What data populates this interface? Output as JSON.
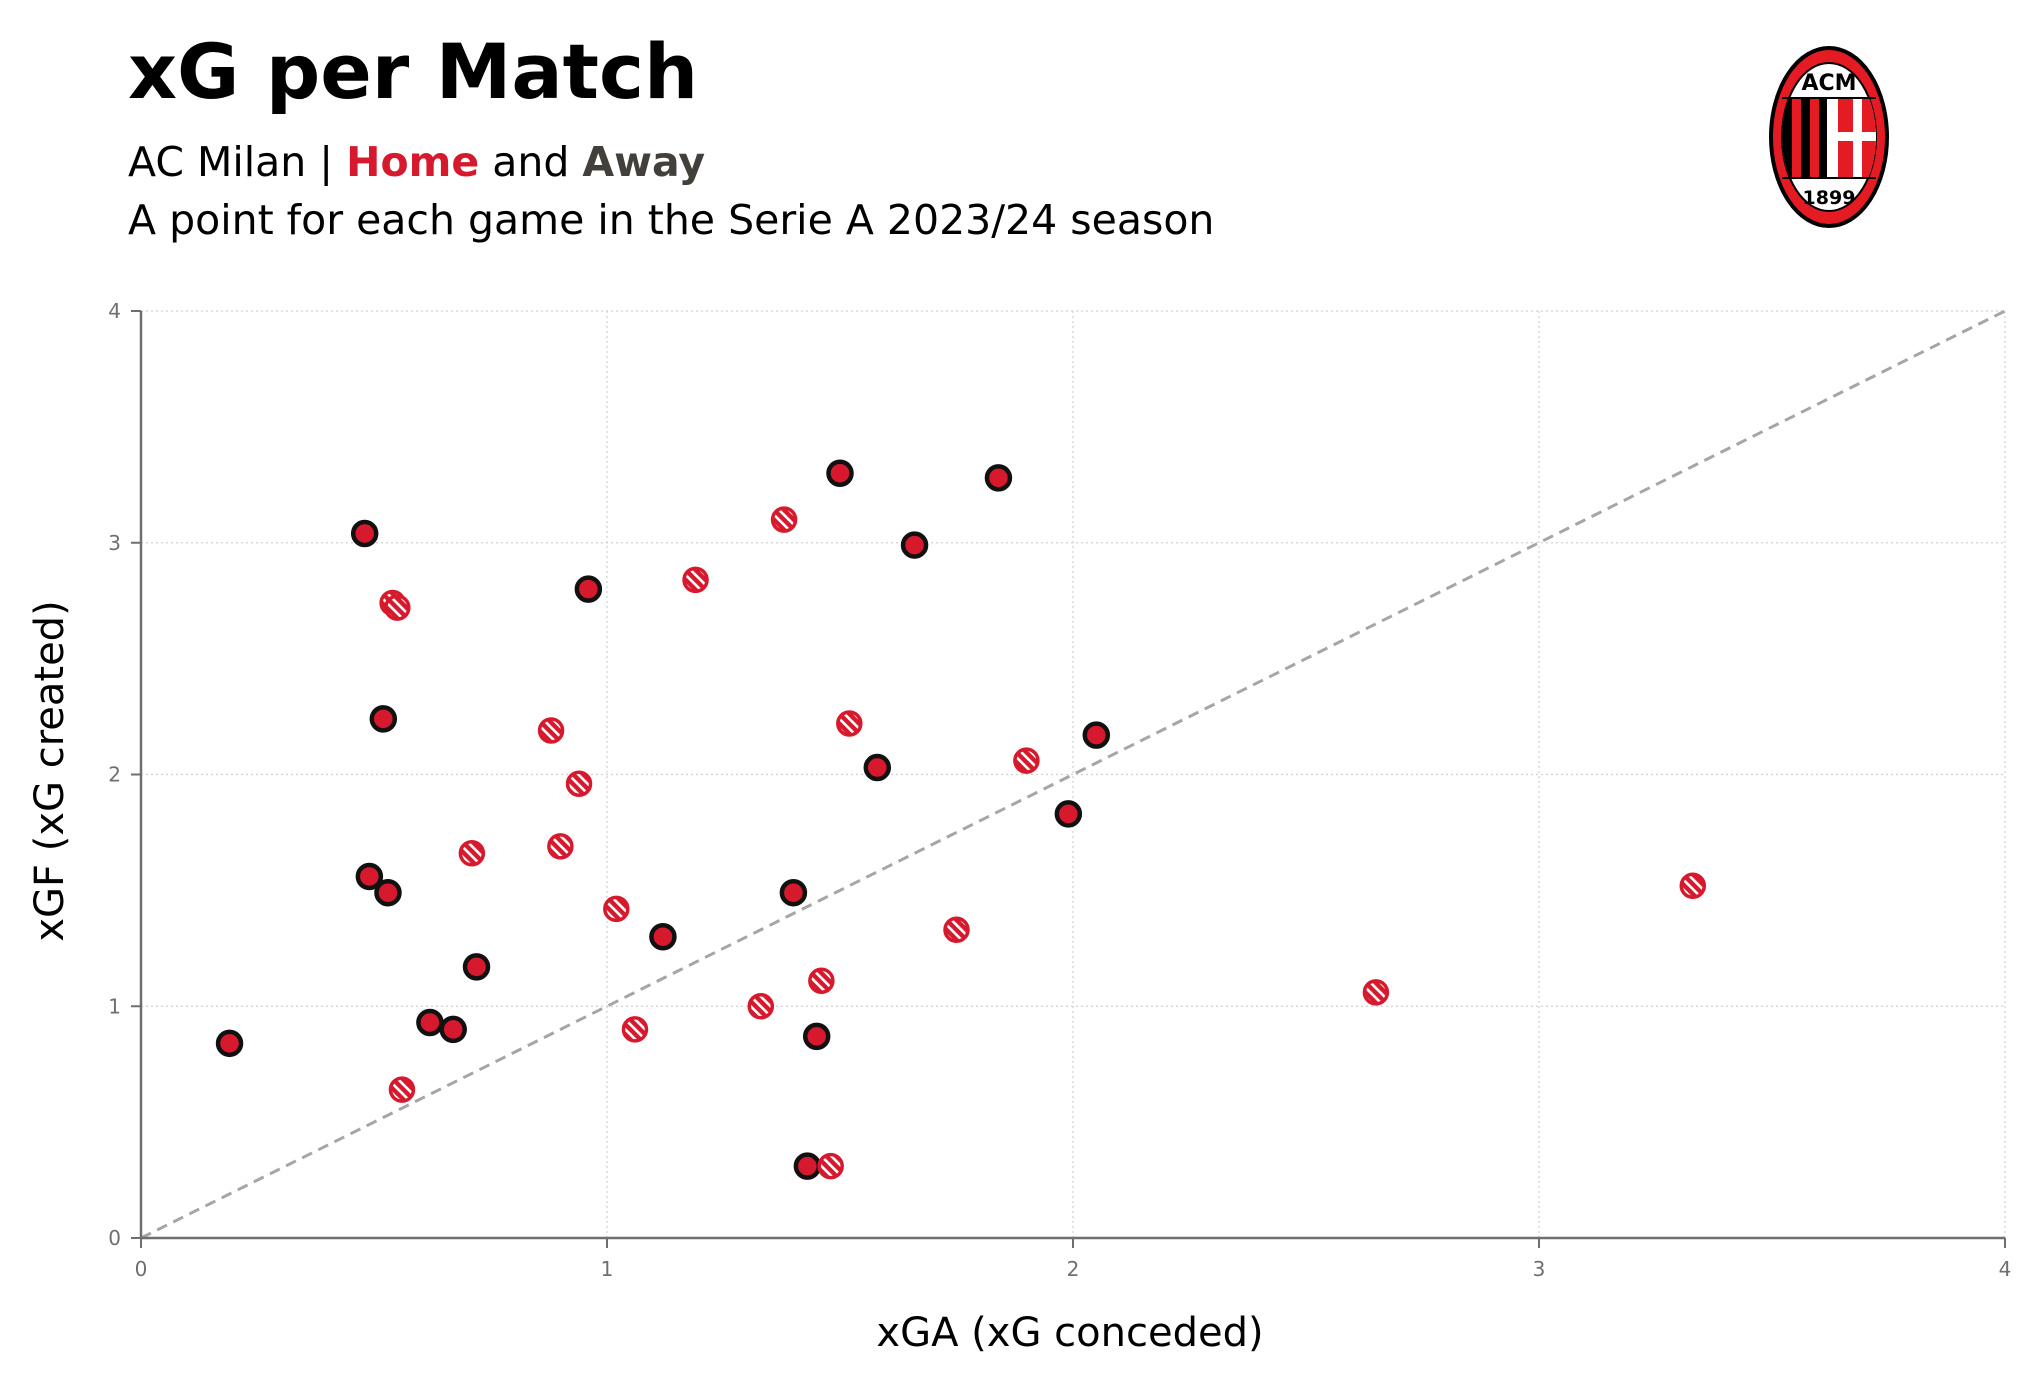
{
  "header": {
    "title": "xG per Match",
    "subtitle_team": "AC Milan |",
    "subtitle_home": "Home",
    "subtitle_and": "and",
    "subtitle_away": "Away",
    "description": "A point for each game in the Serie A 2023/24 season"
  },
  "logo": {
    "top_text": "ACM",
    "year": "1899",
    "colors": {
      "red": "#e41b23",
      "black": "#000000",
      "white": "#ffffff"
    }
  },
  "colors": {
    "home": "#d7192d",
    "away": "#433f3a",
    "marker_fill": "#d7192d",
    "diagonal": "#a6a6a6",
    "axis": "#6f6f6f",
    "grid": "#d0d0d0"
  },
  "chart_data": {
    "type": "scatter",
    "xlabel": "xGA (xG conceded)",
    "ylabel": "xGF (xG created)",
    "xlim": [
      0,
      4
    ],
    "ylim": [
      0,
      4
    ],
    "x_ticks": [
      "0",
      "1",
      "2",
      "3",
      "4"
    ],
    "y_ticks": [
      "0",
      "1",
      "2",
      "3",
      "4"
    ],
    "grid": true,
    "reference_line": "y = x",
    "series": [
      {
        "name": "Home",
        "marker": "solid",
        "points": [
          {
            "x": 0.19,
            "y": 0.84
          },
          {
            "x": 0.48,
            "y": 3.04
          },
          {
            "x": 0.52,
            "y": 2.24
          },
          {
            "x": 0.49,
            "y": 1.56
          },
          {
            "x": 0.53,
            "y": 1.49
          },
          {
            "x": 0.62,
            "y": 0.93
          },
          {
            "x": 0.67,
            "y": 0.9
          },
          {
            "x": 0.72,
            "y": 1.17
          },
          {
            "x": 0.96,
            "y": 2.8
          },
          {
            "x": 1.12,
            "y": 1.3
          },
          {
            "x": 1.4,
            "y": 1.49
          },
          {
            "x": 1.43,
            "y": 0.31
          },
          {
            "x": 1.45,
            "y": 0.87
          },
          {
            "x": 1.5,
            "y": 3.3
          },
          {
            "x": 1.58,
            "y": 2.03
          },
          {
            "x": 1.66,
            "y": 2.99
          },
          {
            "x": 1.84,
            "y": 3.28
          },
          {
            "x": 1.99,
            "y": 1.83
          },
          {
            "x": 2.05,
            "y": 2.17
          }
        ]
      },
      {
        "name": "Away",
        "marker": "hatched",
        "points": [
          {
            "x": 0.54,
            "y": 2.74
          },
          {
            "x": 0.55,
            "y": 2.72
          },
          {
            "x": 0.56,
            "y": 0.64
          },
          {
            "x": 0.71,
            "y": 1.66
          },
          {
            "x": 0.88,
            "y": 2.19
          },
          {
            "x": 0.9,
            "y": 1.69
          },
          {
            "x": 0.94,
            "y": 1.96
          },
          {
            "x": 1.02,
            "y": 1.42
          },
          {
            "x": 1.06,
            "y": 0.9
          },
          {
            "x": 1.19,
            "y": 2.84
          },
          {
            "x": 1.33,
            "y": 1.0
          },
          {
            "x": 1.38,
            "y": 3.1
          },
          {
            "x": 1.46,
            "y": 1.11
          },
          {
            "x": 1.48,
            "y": 0.31
          },
          {
            "x": 1.52,
            "y": 2.22
          },
          {
            "x": 1.75,
            "y": 1.33
          },
          {
            "x": 1.9,
            "y": 2.06
          },
          {
            "x": 2.65,
            "y": 1.06
          },
          {
            "x": 3.33,
            "y": 1.52
          }
        ]
      }
    ]
  }
}
